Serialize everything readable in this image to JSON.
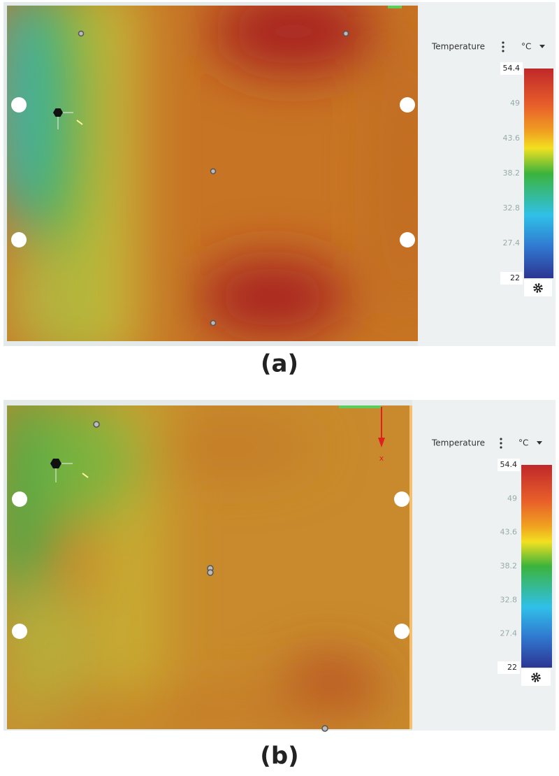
{
  "panels": [
    {
      "label": "(a)",
      "legend": {
        "title": "Temperature",
        "unit": "°C",
        "ticks": [
          "54.4",
          "49",
          "43.6",
          "38.2",
          "32.8",
          "27.4",
          "22"
        ]
      }
    },
    {
      "label": "(b)",
      "axis_label": "x",
      "legend": {
        "title": "Temperature",
        "unit": "°C",
        "ticks": [
          "54.4",
          "49",
          "43.6",
          "38.2",
          "32.8",
          "27.4",
          "22"
        ]
      }
    }
  ]
}
